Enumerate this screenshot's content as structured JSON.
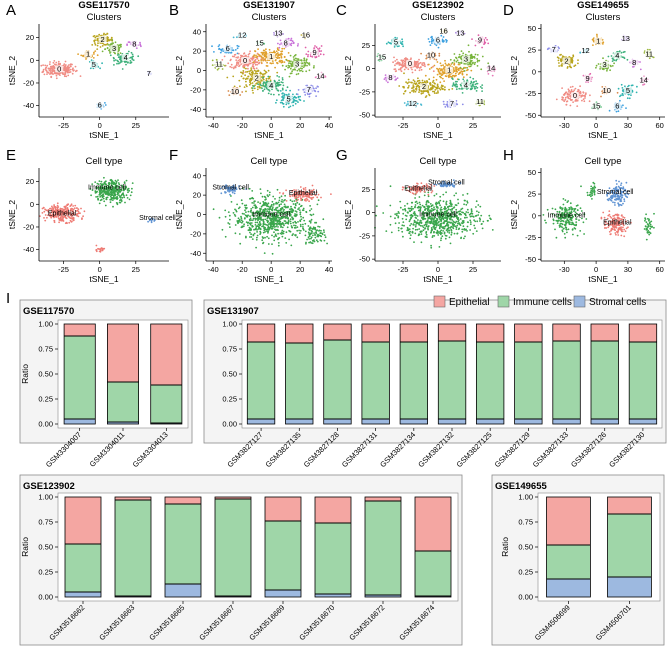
{
  "panel_letters": {
    "A": "A",
    "B": "B",
    "C": "C",
    "D": "D",
    "E": "E",
    "F": "F",
    "G": "G",
    "H": "H",
    "I": "I"
  },
  "colors": {
    "epithelial": "#f4a6a2",
    "immune": "#9fd6a8",
    "stromal": "#9db9e0",
    "scatter_epithelial": "#ee7b74",
    "scatter_immune": "#3aa64c",
    "scatter_stromal": "#5f93d3",
    "frame": "#555555",
    "panel_bg": "#f4f4f4"
  },
  "scatter_panels": [
    {
      "id": "A",
      "gse": "GSE117570",
      "title": "Clusters",
      "kind": "clusters",
      "xlabel": "tSNE_1",
      "ylabel": "tSNE_2",
      "xticks": [
        -25,
        0,
        25
      ],
      "yticks": [
        -40,
        -20,
        0,
        20
      ],
      "xlim": [
        -42,
        48
      ],
      "ylim": [
        -50,
        32
      ],
      "labels": [
        "0",
        "1",
        "2",
        "3",
        "4",
        "5",
        "6",
        "7",
        "8"
      ]
    },
    {
      "id": "B",
      "gse": "GSE131907",
      "title": "Clusters",
      "kind": "clusters",
      "xlabel": "tSNE_1",
      "ylabel": "tSNE_2",
      "xticks": [
        -40,
        -20,
        0,
        20,
        40
      ],
      "yticks": [
        -40,
        -20,
        0,
        20,
        40
      ],
      "xlim": [
        -45,
        42
      ],
      "ylim": [
        -48,
        48
      ],
      "labels": [
        "0",
        "1",
        "2",
        "3",
        "4",
        "5",
        "6",
        "7",
        "8",
        "9",
        "10",
        "11",
        "12",
        "13",
        "14",
        "15",
        "16"
      ]
    },
    {
      "id": "C",
      "gse": "GSE123902",
      "title": "Clusters",
      "kind": "clusters",
      "xlabel": "tSNE_1",
      "ylabel": "tSNE_2",
      "xticks": [
        -25,
        0,
        25
      ],
      "yticks": [
        -50,
        -25,
        0,
        25
      ],
      "xlim": [
        -45,
        45
      ],
      "ylim": [
        -52,
        48
      ],
      "labels": [
        "0",
        "1",
        "2",
        "3",
        "4",
        "5",
        "6",
        "7",
        "8",
        "9",
        "10",
        "11",
        "12",
        "13",
        "14",
        "15",
        "16"
      ]
    },
    {
      "id": "D",
      "gse": "GSE149655",
      "title": "Clusters",
      "kind": "clusters",
      "xlabel": "tSNE_1",
      "ylabel": "tSNE_2",
      "xticks": [
        -30,
        0,
        30,
        60
      ],
      "yticks": [
        -50,
        -25,
        0,
        25,
        50
      ],
      "xlim": [
        -52,
        65
      ],
      "ylim": [
        -52,
        55
      ],
      "labels": [
        "0",
        "1",
        "2",
        "3",
        "4",
        "5",
        "6",
        "7",
        "8",
        "9",
        "10",
        "11",
        "12",
        "13",
        "14",
        "15"
      ]
    },
    {
      "id": "E",
      "title": "Cell type",
      "kind": "celltype",
      "xlabel": "tSNE_1",
      "ylabel": "tSNE_2",
      "xticks": [
        -25,
        0,
        25
      ],
      "yticks": [
        -40,
        -20,
        0,
        20
      ],
      "xlim": [
        -42,
        48
      ],
      "ylim": [
        -50,
        32
      ],
      "celltypes": [
        "Epithelial",
        "Immune cell",
        "Stromal cell"
      ]
    },
    {
      "id": "F",
      "title": "Cell type",
      "kind": "celltype",
      "xlabel": "tSNE_1",
      "ylabel": "tSNE_2",
      "xticks": [
        -40,
        -20,
        0,
        20,
        40
      ],
      "yticks": [
        -40,
        -20,
        0,
        20,
        40
      ],
      "xlim": [
        -45,
        42
      ],
      "ylim": [
        -48,
        48
      ],
      "celltypes": [
        "Stromal cell",
        "Epithelial",
        "Immune cell"
      ]
    },
    {
      "id": "G",
      "title": "Cell type",
      "kind": "celltype",
      "xlabel": "tSNE_1",
      "ylabel": "tSNE_2",
      "xticks": [
        -25,
        0,
        25
      ],
      "yticks": [
        -50,
        -25,
        0,
        25
      ],
      "xlim": [
        -45,
        45
      ],
      "ylim": [
        -52,
        48
      ],
      "celltypes": [
        "Stromal cell",
        "Epithelial",
        "Immune cell"
      ]
    },
    {
      "id": "H",
      "title": "Cell type",
      "kind": "celltype",
      "xlabel": "tSNE_1",
      "ylabel": "tSNE_2",
      "xticks": [
        -30,
        0,
        30,
        60
      ],
      "yticks": [
        -50,
        -25,
        0,
        25,
        50
      ],
      "xlim": [
        -52,
        65
      ],
      "ylim": [
        -52,
        55
      ],
      "celltypes": [
        "Stromal cell",
        "Immune cell",
        "Epithelial"
      ]
    }
  ],
  "legend": {
    "items": [
      "Epithelial",
      "Immune cells",
      "Stromal cells"
    ]
  },
  "chart_data": [
    {
      "type": "bar",
      "stacked": true,
      "title": "GSE117570",
      "ylabel": "Ratio",
      "ylim": [
        0,
        1
      ],
      "yticks": [
        "0.00",
        "0.25",
        "0.50",
        "0.75",
        "1.00"
      ],
      "categories": [
        "GSM3304007",
        "GSM3304011",
        "GSM3304013"
      ],
      "series": [
        {
          "name": "Stromal cells",
          "values": [
            0.05,
            0.02,
            0.01
          ]
        },
        {
          "name": "Immune cells",
          "values": [
            0.83,
            0.4,
            0.38
          ]
        },
        {
          "name": "Epithelial",
          "values": [
            0.12,
            0.58,
            0.61
          ]
        }
      ]
    },
    {
      "type": "bar",
      "stacked": true,
      "title": "GSE131907",
      "ylabel": "",
      "ylim": [
        0,
        1
      ],
      "yticks": [
        "0.00",
        "0.25",
        "0.50",
        "0.75",
        "1.00"
      ],
      "categories": [
        "GSM3827127",
        "GSM3827135",
        "GSM3827128",
        "GSM3827131",
        "GSM3827134",
        "GSM3827132",
        "GSM3827125",
        "GSM3827129",
        "GSM3827133",
        "GSM3827126",
        "GSM3827130"
      ],
      "series": [
        {
          "name": "Stromal cells",
          "values": [
            0.05,
            0.05,
            0.05,
            0.05,
            0.05,
            0.05,
            0.05,
            0.05,
            0.05,
            0.05,
            0.05
          ]
        },
        {
          "name": "Immune cells",
          "values": [
            0.77,
            0.76,
            0.79,
            0.77,
            0.77,
            0.78,
            0.77,
            0.77,
            0.78,
            0.78,
            0.77
          ]
        },
        {
          "name": "Epithelial",
          "values": [
            0.18,
            0.19,
            0.16,
            0.18,
            0.18,
            0.17,
            0.18,
            0.18,
            0.17,
            0.17,
            0.18
          ]
        }
      ]
    },
    {
      "type": "bar",
      "stacked": true,
      "title": "GSE123902",
      "ylabel": "Ratio",
      "ylim": [
        0,
        1
      ],
      "yticks": [
        "0.00",
        "0.25",
        "0.50",
        "0.75",
        "1.00"
      ],
      "categories": [
        "GSM3516662",
        "GSM3516663",
        "GSM3516665",
        "GSM3516667",
        "GSM3516669",
        "GSM3516670",
        "GSM3516672",
        "GSM3516674"
      ],
      "series": [
        {
          "name": "Stromal cells",
          "values": [
            0.05,
            0.01,
            0.13,
            0.01,
            0.07,
            0.03,
            0.02,
            0.01
          ]
        },
        {
          "name": "Immune cells",
          "values": [
            0.48,
            0.96,
            0.8,
            0.97,
            0.69,
            0.71,
            0.94,
            0.45
          ]
        },
        {
          "name": "Epithelial",
          "values": [
            0.47,
            0.03,
            0.07,
            0.02,
            0.24,
            0.26,
            0.04,
            0.54
          ]
        }
      ]
    },
    {
      "type": "bar",
      "stacked": true,
      "title": "GSE149655",
      "ylabel": "Ratio",
      "ylim": [
        0,
        1
      ],
      "yticks": [
        "0.00",
        "0.25",
        "0.50",
        "0.75",
        "1.00"
      ],
      "categories": [
        "GSM4506699",
        "GSM4506701"
      ],
      "series": [
        {
          "name": "Stromal cells",
          "values": [
            0.18,
            0.2
          ]
        },
        {
          "name": "Immune cells",
          "values": [
            0.34,
            0.63
          ]
        },
        {
          "name": "Epithelial",
          "values": [
            0.48,
            0.17
          ]
        }
      ]
    }
  ]
}
